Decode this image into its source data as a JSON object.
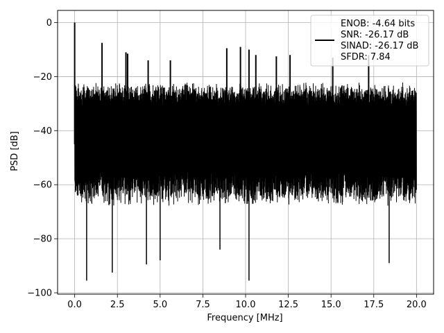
{
  "chart_data": {
    "type": "line",
    "title": "",
    "xlabel": "Frequency [MHz]",
    "ylabel": "PSD [dB]",
    "xlim": [
      -1.0,
      21.0
    ],
    "ylim": [
      -100.5,
      4.5
    ],
    "xticks": [
      0.0,
      2.5,
      5.0,
      7.5,
      10.0,
      12.5,
      15.0,
      17.5,
      20.0
    ],
    "xtick_labels": [
      "0.0",
      "2.5",
      "5.0",
      "7.5",
      "10.0",
      "12.5",
      "15.0",
      "17.5",
      "20.0"
    ],
    "yticks": [
      0,
      -20,
      -40,
      -60,
      -80,
      -100
    ],
    "ytick_labels": [
      "0",
      "−20",
      "−40",
      "−60",
      "−80",
      "−100"
    ],
    "grid": true,
    "legend_position": "top-right",
    "series": [
      {
        "color": "#000000",
        "description_values": {
          "x_range": [
            0.0,
            20.0
          ],
          "noise_upper_db": [
            -28,
            -22
          ],
          "noise_lower_db": [
            -68,
            -58
          ],
          "spikes": [
            {
              "x": 0.0,
              "y": 0.0
            },
            {
              "x": 1.6,
              "y": -7.5
            },
            {
              "x": 3.0,
              "y": -11.0
            },
            {
              "x": 3.1,
              "y": -11.5
            },
            {
              "x": 4.3,
              "y": -14.0
            },
            {
              "x": 5.6,
              "y": -14.0
            },
            {
              "x": 8.9,
              "y": -9.5
            },
            {
              "x": 9.7,
              "y": -9.0
            },
            {
              "x": 10.2,
              "y": -10.0
            },
            {
              "x": 10.6,
              "y": -12.0
            },
            {
              "x": 11.8,
              "y": -12.5
            },
            {
              "x": 12.6,
              "y": -12.0
            },
            {
              "x": 15.1,
              "y": -13.0
            },
            {
              "x": 17.2,
              "y": -12.0
            }
          ],
          "dips": [
            {
              "x": 0.7,
              "y": -95.5
            },
            {
              "x": 2.2,
              "y": -92.5
            },
            {
              "x": 4.2,
              "y": -89.5
            },
            {
              "x": 5.0,
              "y": -88.0
            },
            {
              "x": 8.5,
              "y": -84.0
            },
            {
              "x": 10.2,
              "y": -95.5
            },
            {
              "x": 18.4,
              "y": -89.0
            }
          ]
        }
      }
    ],
    "legend": {
      "entries": [
        "ENOB: -4.64 bits",
        "SNR: -26.17 dB",
        "SINAD: -26.17 dB",
        "SFDR: 7.84"
      ]
    }
  }
}
